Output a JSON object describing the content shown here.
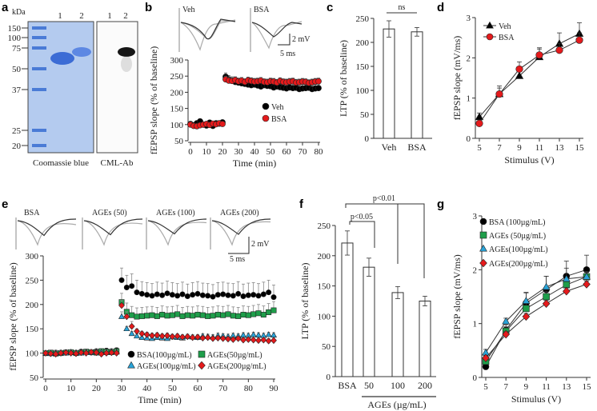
{
  "panel_letters": [
    "a",
    "b",
    "c",
    "d",
    "e",
    "f",
    "g"
  ],
  "gel": {
    "unit": "kDa",
    "markers": [
      "150",
      "100",
      "75",
      "50",
      "37",
      "25",
      "20"
    ],
    "lanes": [
      "1",
      "2"
    ],
    "left_label": "Coomassie blue",
    "right_label": "CML-Ab"
  },
  "traces": {
    "b_labels": [
      "Veh",
      "BSA"
    ],
    "e_labels": [
      "BSA",
      "AGEs (50)",
      "AGEs (100)",
      "AGEs (200)"
    ],
    "scale_mv": "2 mV",
    "scale_ms": "5 ms"
  },
  "chart_data": [
    {
      "panel": "b",
      "type": "scatter",
      "xlabel": "Time (min)",
      "ylabel": "fEPSP slope (% of baseline)",
      "xlim": [
        0,
        80
      ],
      "ylim": [
        50,
        300
      ],
      "xticks": [
        "0",
        "10",
        "20",
        "30",
        "40",
        "50",
        "60",
        "70",
        "80"
      ],
      "yticks": [
        "50",
        "100",
        "150",
        "200",
        "250",
        "300"
      ],
      "x_start": 0,
      "x_step": 2,
      "series": [
        {
          "name": "Veh",
          "color": "#000000",
          "marker": "circle",
          "sem": 12,
          "values": [
            102,
            98,
            104,
            110,
            100,
            97,
            106,
            96,
            104,
            103,
            107,
            248,
            240,
            236,
            232,
            230,
            228,
            226,
            224,
            222,
            224,
            221,
            218,
            222,
            220,
            219,
            215,
            218,
            216,
            214,
            212,
            215,
            213,
            214,
            210,
            212,
            213,
            214,
            210,
            212,
            213
          ]
        },
        {
          "name": "BSA",
          "color": "#e41a1c",
          "marker": "circle",
          "sem": 10,
          "values": [
            100,
            96,
            95,
            98,
            100,
            102,
            99,
            103,
            101,
            104,
            102,
            240,
            236,
            235,
            238,
            234,
            236,
            232,
            237,
            235,
            233,
            234,
            236,
            232,
            231,
            234,
            233,
            230,
            235,
            232,
            231,
            233,
            234,
            230,
            231,
            233,
            232,
            229,
            231,
            233,
            234
          ]
        }
      ],
      "legend": [
        "Veh",
        "BSA"
      ]
    },
    {
      "panel": "c",
      "type": "bar",
      "ylabel": "LTP (% of baseline)",
      "ylim": [
        0,
        250
      ],
      "yticks": [
        "0",
        "50",
        "100",
        "150",
        "200",
        "250"
      ],
      "categories": [
        "Veh",
        "BSA"
      ],
      "values": [
        228,
        222
      ],
      "errors": [
        17,
        9
      ],
      "annotation": "ns"
    },
    {
      "panel": "d",
      "type": "line",
      "xlabel": "Stimulus (V)",
      "ylabel": "fEPSP slope (mV/ms)",
      "xlim": [
        5,
        15
      ],
      "ylim": [
        0,
        3
      ],
      "x": [
        5,
        7,
        9,
        11,
        13,
        15
      ],
      "xticks": [
        "5",
        "7",
        "9",
        "11",
        "13",
        "15"
      ],
      "yticks": [
        "0",
        "1",
        "2",
        "3"
      ],
      "series": [
        {
          "name": "Veh",
          "color": "#000000",
          "marker": "triangle",
          "values": [
            0.53,
            1.1,
            1.55,
            2.02,
            2.35,
            2.6
          ],
          "errors": [
            0.1,
            0.2,
            0.2,
            0.2,
            0.27,
            0.27
          ]
        },
        {
          "name": "BSA",
          "color": "#e41a1c",
          "marker": "circle",
          "values": [
            0.37,
            1.1,
            1.72,
            2.07,
            2.19,
            2.44
          ],
          "errors": [
            0.05,
            0.15,
            0.18,
            0.18,
            0.17,
            0.18
          ]
        }
      ],
      "legend": [
        "Veh",
        "BSA"
      ]
    },
    {
      "panel": "e",
      "type": "scatter",
      "xlabel": "Time (min)",
      "ylabel": "fEPSP slope (% of baseline)",
      "xlim": [
        0,
        90
      ],
      "ylim": [
        50,
        300
      ],
      "xticks": [
        "0",
        "10",
        "20",
        "30",
        "40",
        "50",
        "60",
        "70",
        "80",
        "90"
      ],
      "yticks": [
        "50",
        "100",
        "150",
        "200",
        "250",
        "300"
      ],
      "x_start": 0,
      "x_step": 2,
      "series": [
        {
          "name": "BSA(100µg/mL)",
          "color": "#000000",
          "marker": "circle",
          "sem": 25,
          "values": [
            100,
            99,
            101,
            100,
            102,
            101,
            100,
            103,
            102,
            101,
            104,
            103,
            105,
            104,
            106,
            250,
            235,
            238,
            225,
            222,
            220,
            218,
            221,
            219,
            223,
            220,
            218,
            221,
            217,
            220,
            222,
            219,
            218,
            216,
            220,
            221,
            219,
            218,
            222,
            217,
            219,
            220,
            218,
            221,
            225,
            215
          ]
        },
        {
          "name": "AGEs(50µg/mL)",
          "color": "#1e9e4a",
          "marker": "square",
          "sem": 18,
          "values": [
            100,
            101,
            99,
            100,
            101,
            102,
            100,
            101,
            103,
            102,
            101,
            104,
            103,
            102,
            104,
            205,
            185,
            178,
            175,
            176,
            177,
            178,
            176,
            179,
            177,
            178,
            180,
            176,
            178,
            177,
            179,
            178,
            176,
            177,
            179,
            178,
            180,
            177,
            176,
            179,
            178,
            180,
            182,
            179,
            184,
            188
          ]
        },
        {
          "name": "AGEs(100µg/mL)",
          "color": "#29a3d8",
          "marker": "triangle",
          "sem": 10,
          "values": [
            100,
            99,
            100,
            101,
            100,
            102,
            101,
            100,
            102,
            101,
            103,
            102,
            101,
            103,
            102,
            175,
            150,
            140,
            135,
            132,
            131,
            130,
            132,
            131,
            130,
            133,
            132,
            131,
            134,
            133,
            132,
            135,
            134,
            133,
            136,
            135,
            134,
            136,
            135,
            137,
            136,
            138,
            137,
            136,
            138,
            137
          ]
        },
        {
          "name": "AGEs(200µg/mL)",
          "color": "#e41a1c",
          "marker": "diamond",
          "sem": 10,
          "values": [
            100,
            99,
            98,
            100,
            101,
            100,
            99,
            101,
            100,
            102,
            101,
            98,
            100,
            101,
            100,
            198,
            175,
            155,
            145,
            140,
            138,
            136,
            137,
            135,
            136,
            134,
            135,
            133,
            134,
            132,
            133,
            131,
            132,
            130,
            131,
            130,
            129,
            128,
            130,
            127,
            128,
            127,
            126,
            127,
            125,
            126
          ]
        }
      ],
      "legend": [
        "BSA(100µg/mL)",
        "AGEs(50µg/mL)",
        "AGEs(100µg/mL)",
        "AGEs(200µg/mL)"
      ]
    },
    {
      "panel": "f",
      "type": "bar",
      "ylabel": "LTP (% of baseline)",
      "ylim": [
        0,
        250
      ],
      "yticks": [
        "0",
        "50",
        "100",
        "150",
        "200",
        "250"
      ],
      "categories": [
        "BSA",
        "50",
        "100",
        "200"
      ],
      "values": [
        221,
        181,
        139,
        125
      ],
      "errors": [
        20,
        15,
        10,
        8
      ],
      "group_label": "AGEs (µg/mL)",
      "annotations": [
        "p<0.05",
        "p<0.01"
      ]
    },
    {
      "panel": "g",
      "type": "line",
      "xlabel": "Stimulus (V)",
      "ylabel": "fEPSP slope (mV/ms)",
      "xlim": [
        5,
        15
      ],
      "ylim": [
        0,
        3
      ],
      "x": [
        5,
        7,
        9,
        11,
        13,
        15
      ],
      "xticks": [
        "5",
        "7",
        "9",
        "11",
        "13",
        "15"
      ],
      "yticks": [
        "0",
        "1",
        "2",
        "3"
      ],
      "series": [
        {
          "name": "BSA (100µg/mL)",
          "color": "#000000",
          "marker": "circle",
          "values": [
            0.2,
            0.88,
            1.38,
            1.63,
            1.88,
            2.0
          ],
          "errors": [
            0.04,
            0.1,
            0.2,
            0.25,
            0.28,
            0.27
          ]
        },
        {
          "name": "AGEs (50µg/mL)",
          "color": "#1e9e4a",
          "marker": "square",
          "values": [
            0.3,
            0.86,
            1.28,
            1.5,
            1.72,
            1.87
          ],
          "errors": [
            0.04,
            0.08,
            0.1,
            0.1,
            0.1,
            0.08
          ]
        },
        {
          "name": "AGEs(100µg/mL)",
          "color": "#29a3d8",
          "marker": "triangle",
          "values": [
            0.46,
            1.04,
            1.42,
            1.68,
            1.83,
            1.87
          ],
          "errors": [
            0.06,
            0.06,
            0.15,
            0.2,
            0.2,
            0.1
          ]
        },
        {
          "name": "AGEs(200µg/mL)",
          "color": "#e41a1c",
          "marker": "diamond",
          "values": [
            0.36,
            0.8,
            1.13,
            1.37,
            1.6,
            1.73
          ],
          "errors": [
            0.04,
            0.05,
            0.06,
            0.06,
            0.07,
            0.06
          ]
        }
      ],
      "legend": [
        "BSA (100µg/mL)",
        "AGEs (50µg/mL)",
        "AGEs(100µg/mL)",
        "AGEs(200µg/mL)"
      ]
    }
  ]
}
